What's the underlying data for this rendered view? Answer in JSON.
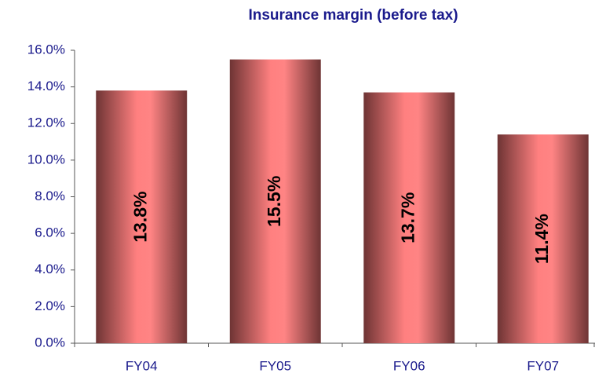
{
  "chart_data": {
    "type": "bar",
    "title": "Insurance margin (before tax)",
    "categories": [
      "FY04",
      "FY05",
      "FY06",
      "FY07"
    ],
    "values": [
      13.8,
      15.5,
      13.7,
      11.4
    ],
    "value_labels": [
      "13.8%",
      "15.5%",
      "13.7%",
      "11.4%"
    ],
    "color": "#ff8080",
    "ylim": [
      0,
      16
    ],
    "yticks": [
      {
        "value": 0,
        "label": "0.0%"
      },
      {
        "value": 2,
        "label": "2.0%"
      },
      {
        "value": 4,
        "label": "4.0%"
      },
      {
        "value": 6,
        "label": "6.0%"
      },
      {
        "value": 8,
        "label": "8.0%"
      },
      {
        "value": 10,
        "label": "10.0%"
      },
      {
        "value": 12,
        "label": "12.0%"
      },
      {
        "value": 14,
        "label": "14.0%"
      },
      {
        "value": 16,
        "label": "16.0%"
      }
    ],
    "grid": false
  }
}
